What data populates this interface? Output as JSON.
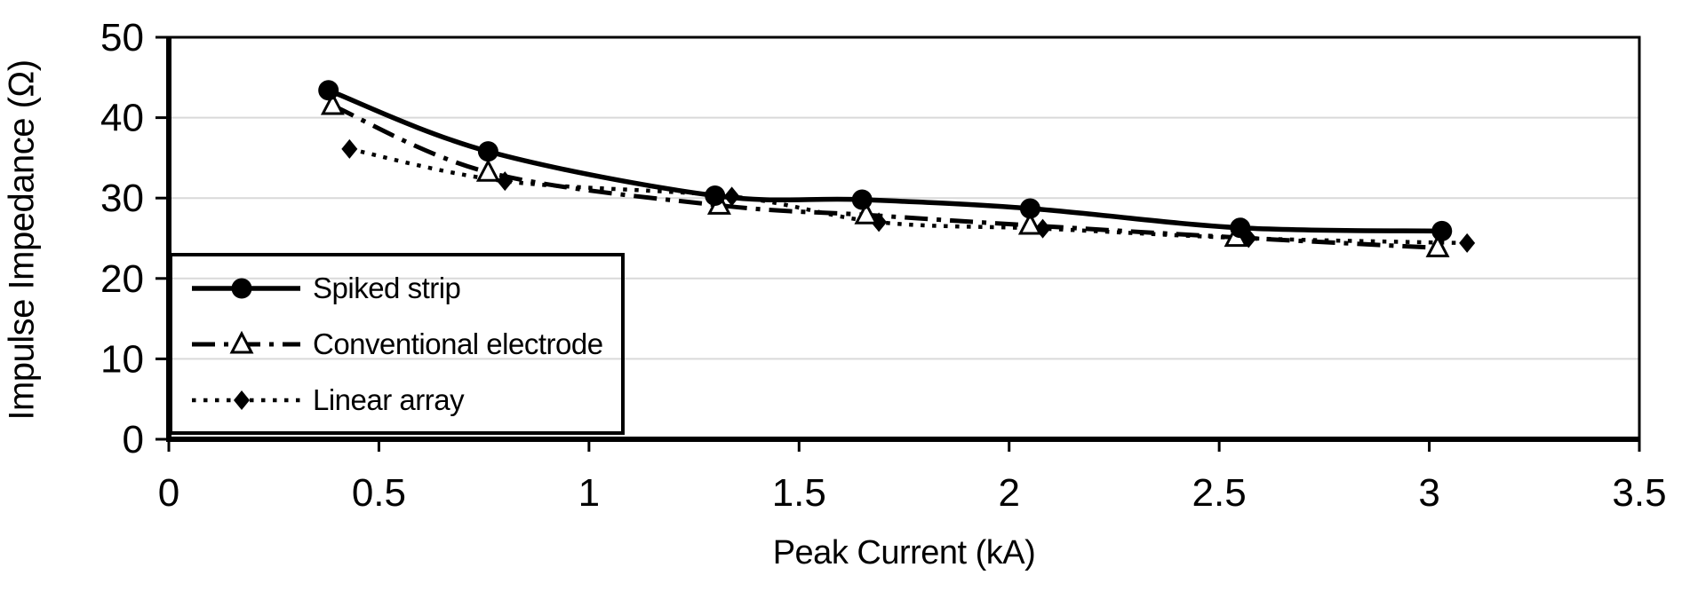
{
  "figure": {
    "background_color": "#ffffff",
    "axis_color": "#000000",
    "gridline_color": "#d9d9d9",
    "series_color": "#000000"
  },
  "chart_data": {
    "type": "line",
    "title": "",
    "xlabel": "Peak Current (kA)",
    "ylabel": "Impulse Impedance (Ω)",
    "xlim": [
      0,
      3.5
    ],
    "ylim": [
      0,
      50
    ],
    "x_ticks": [
      0,
      0.5,
      1,
      1.5,
      2,
      2.5,
      3,
      3.5
    ],
    "x_tick_labels": [
      "0",
      "0.5",
      "1",
      "1.5",
      "2",
      "2.5",
      "3",
      "3.5"
    ],
    "y_ticks": [
      0,
      10,
      20,
      30,
      40,
      50
    ],
    "y_tick_labels": [
      "0",
      "10",
      "20",
      "30",
      "40",
      "50"
    ],
    "grid": "horizontal",
    "legend_position": "inside-bottom-left",
    "series": [
      {
        "name": "Spiked strip",
        "line_style": "solid",
        "marker": "circle-filled",
        "points": [
          [
            0.38,
            43.4
          ],
          [
            0.76,
            35.8
          ],
          [
            1.3,
            30.3
          ],
          [
            1.65,
            29.8
          ],
          [
            2.05,
            28.7
          ],
          [
            2.55,
            26.3
          ],
          [
            3.03,
            25.9
          ]
        ]
      },
      {
        "name": "Conventional electrode",
        "line_style": "dash-dot",
        "marker": "triangle-open",
        "points": [
          [
            0.39,
            41.5
          ],
          [
            0.76,
            33.2
          ],
          [
            1.31,
            29.1
          ],
          [
            1.66,
            27.9
          ],
          [
            2.05,
            26.6
          ],
          [
            2.54,
            25.1
          ],
          [
            3.02,
            23.8
          ]
        ]
      },
      {
        "name": "Linear array",
        "line_style": "dotted",
        "marker": "diamond-filled",
        "points": [
          [
            0.43,
            36.1
          ],
          [
            0.8,
            32.1
          ],
          [
            1.34,
            30.2
          ],
          [
            1.69,
            27.0
          ],
          [
            2.08,
            26.2
          ],
          [
            2.57,
            25.0
          ],
          [
            3.09,
            24.4
          ]
        ]
      }
    ]
  }
}
